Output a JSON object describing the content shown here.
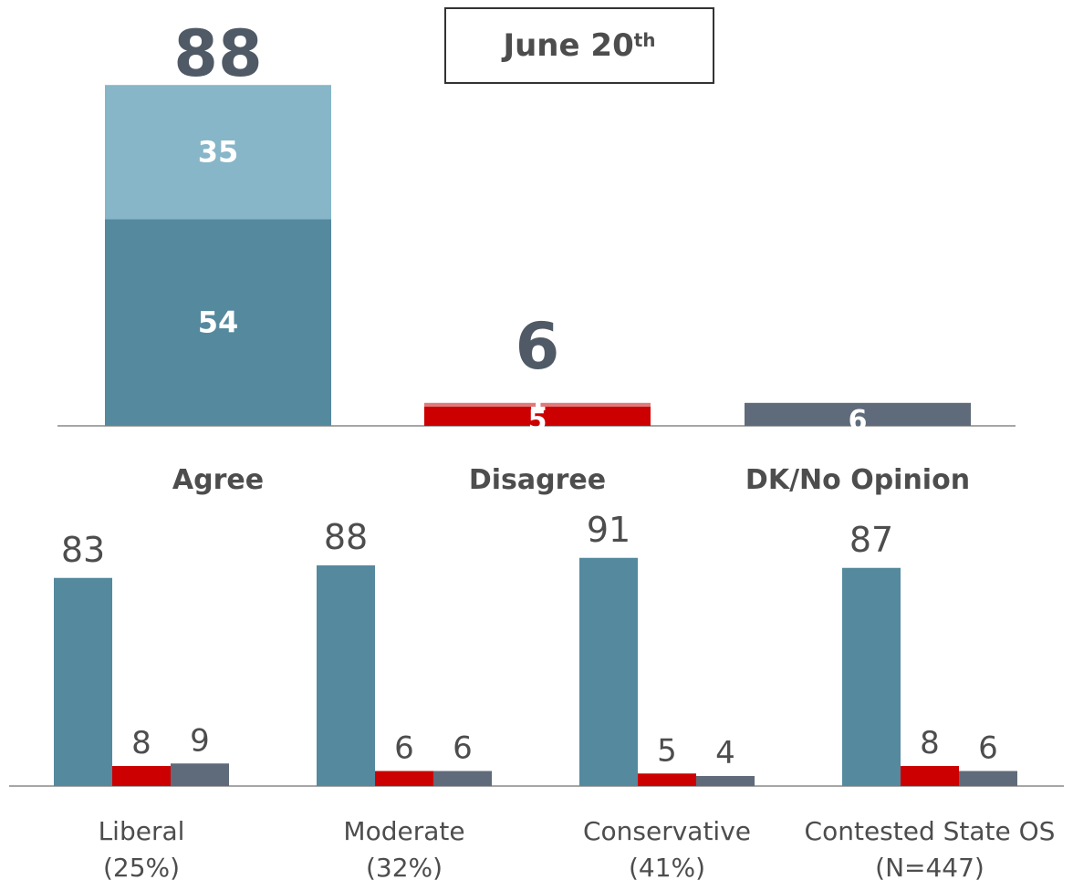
{
  "date_box": {
    "text": "June 20",
    "suffix": "th"
  },
  "colors": {
    "strong_agree": "#55899E",
    "somewhat_agree": "#86B6C8",
    "disagree": "#CC0000",
    "dk": "#5F6B7A",
    "label_dark": "#4D4D4D",
    "label_total": "#505A66",
    "axis": "#888888"
  },
  "chart_data": [
    {
      "type": "bar",
      "stacked": true,
      "categories": [
        "Agree",
        "Disagree",
        "DK/No Opinion"
      ],
      "totals": [
        "88",
        "6",
        ""
      ],
      "segment_labels": [
        [
          "54",
          "35"
        ],
        [
          "5",
          "1"
        ],
        [
          "6"
        ]
      ],
      "segments": [
        [
          54,
          35
        ],
        [
          5,
          1
        ],
        [
          6
        ]
      ],
      "ylim": [
        0,
        100
      ]
    },
    {
      "type": "bar",
      "categories": [
        {
          "name": "Liberal",
          "sub": "(25%)"
        },
        {
          "name": "Moderate",
          "sub": "(32%)"
        },
        {
          "name": "Conservative",
          "sub": "(41%)"
        },
        {
          "name": "Contested State OS",
          "sub": "(N=447)"
        }
      ],
      "series": [
        {
          "values": [
            83,
            88,
            91,
            87
          ]
        },
        {
          "values": [
            8,
            6,
            5,
            8
          ]
        },
        {
          "values": [
            9,
            6,
            4,
            6
          ]
        }
      ],
      "ylim": [
        0,
        100
      ]
    }
  ]
}
